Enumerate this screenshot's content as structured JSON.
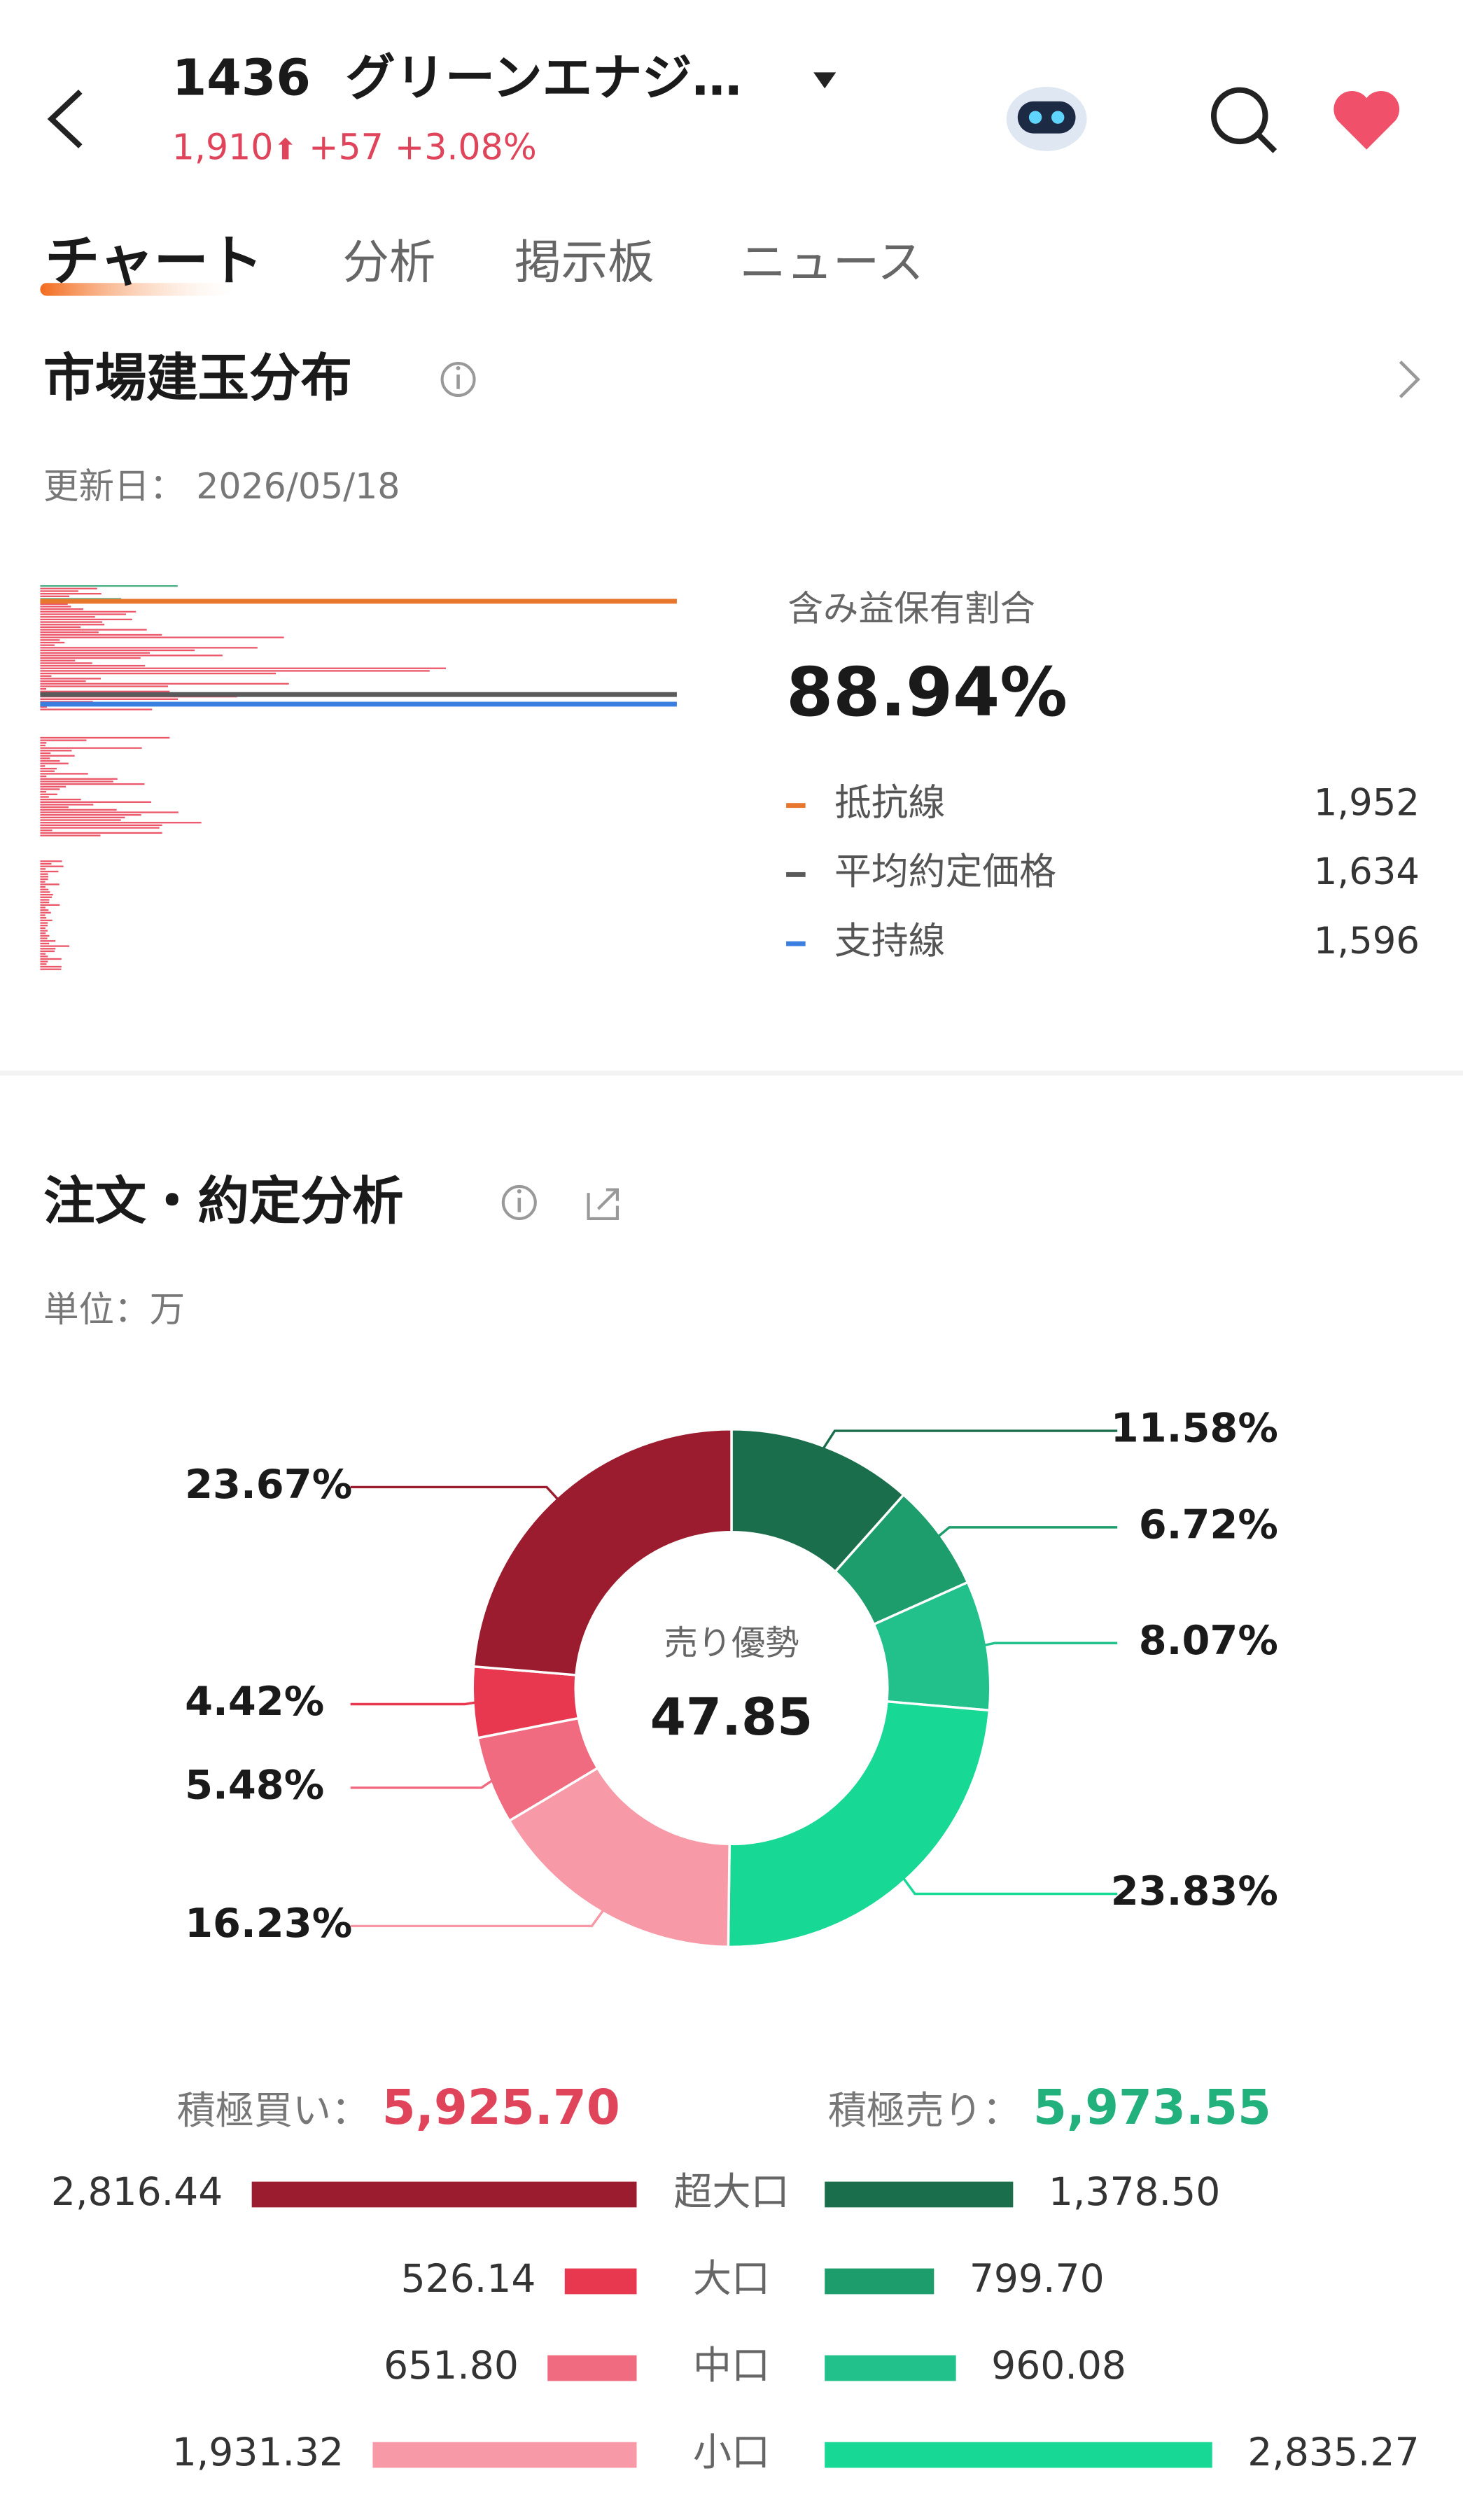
{
  "header": {
    "code": "1436",
    "name": "グリーンエナジ…",
    "price": "1,910",
    "change": "+57",
    "change_pct": "+3.08%"
  },
  "tabs": [
    "チャート",
    "分析",
    "掲示板",
    "ニュース"
  ],
  "position_distribution": {
    "title": "市場建玉分布",
    "updated_label": "更新日：",
    "updated_date": "2026/05/18",
    "profit_ratio_label": "含み益保有割合",
    "profit_ratio": "88.94%",
    "lines": [
      {
        "name": "抵抗線",
        "value": "1,952",
        "color": "#e8772e"
      },
      {
        "name": "平均約定価格",
        "value": "1,634",
        "color": "#5a5a5a"
      },
      {
        "name": "支持線",
        "value": "1,596",
        "color": "#3a7ee0"
      }
    ]
  },
  "order_analysis": {
    "title": "注文・約定分析",
    "unit": "単位：万",
    "center_label": "売り優勢",
    "center_value": "47.85",
    "buy_label": "積極買い：",
    "buy_total": "5,925.70",
    "sell_label": "積極売り：",
    "sell_total": "5,973.55",
    "sizes": [
      "超大口",
      "大口",
      "中口",
      "小口"
    ],
    "buy_values": [
      2816.44,
      526.14,
      651.8,
      1931.32
    ],
    "buy_value_labels": [
      "2,816.44",
      "526.14",
      "651.80",
      "1,931.32"
    ],
    "buy_colors": [
      "#9b1c2e",
      "#e8384f",
      "#f06a80",
      "#f799a6"
    ],
    "sell_values": [
      1378.5,
      799.7,
      960.08,
      2835.27
    ],
    "sell_value_labels": [
      "1,378.50",
      "799.70",
      "960.08",
      "2,835.27"
    ],
    "sell_colors": [
      "#1a6e4c",
      "#1d9d6c",
      "#22c08a",
      "#17d894"
    ]
  },
  "chart_data": {
    "type": "pie",
    "values": [
      11.58,
      6.72,
      8.07,
      23.83,
      16.23,
      5.48,
      4.42,
      23.67
    ],
    "value_labels": [
      "11.58%",
      "6.72%",
      "8.07%",
      "23.83%",
      "16.23%",
      "5.48%",
      "4.42%",
      "23.67%"
    ],
    "colors": [
      "#1a6e4c",
      "#1d9d6c",
      "#22c08a",
      "#17d894",
      "#f799a6",
      "#f06a80",
      "#e8384f",
      "#9b1c2e"
    ]
  }
}
